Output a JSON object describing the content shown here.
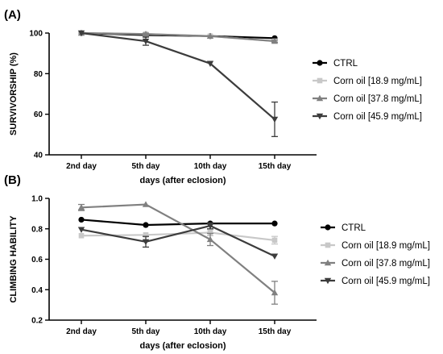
{
  "chart_data": [
    {
      "panel": "(A)",
      "type": "line",
      "title": "",
      "xlabel": "days (after eclosion)",
      "ylabel": "SURVIVORSHIP (%)",
      "categories": [
        "2nd day",
        "5th day",
        "10th day",
        "15th day"
      ],
      "ylim": [
        40,
        100
      ],
      "yticks": [
        40,
        60,
        80,
        100
      ],
      "grid": false,
      "legend": "right",
      "series": [
        {
          "name": "CTRL",
          "marker": "circle",
          "color": "#000000",
          "values": [
            100,
            99,
            98.5,
            97.5
          ],
          "error": [
            0,
            0,
            0,
            0
          ]
        },
        {
          "name": "Corn oil [18.9 mg/mL]",
          "marker": "square",
          "color": "#c8c8c8",
          "values": [
            100,
            99.5,
            98.5,
            96
          ],
          "error": [
            0,
            0,
            0,
            0.5
          ]
        },
        {
          "name": "Corn oil [37.8 mg/mL]",
          "marker": "triangle-up",
          "color": "#808080",
          "values": [
            100,
            99.5,
            98.5,
            96
          ],
          "error": [
            0,
            0.5,
            0,
            0.5
          ]
        },
        {
          "name": "Corn oil [45.9 mg/mL]",
          "marker": "triangle-down",
          "color": "#3c3c3c",
          "values": [
            100,
            96,
            85,
            57.5
          ],
          "error": [
            0,
            2,
            0,
            8.5
          ]
        }
      ]
    },
    {
      "panel": "(B)",
      "type": "line",
      "title": "",
      "xlabel": "days (after eclosion)",
      "ylabel": "CLIMBING HABILITY",
      "categories": [
        "2nd day",
        "5th day",
        "10th day",
        "15th day"
      ],
      "ylim": [
        0.2,
        1.0
      ],
      "yticks": [
        0.2,
        0.4,
        0.6,
        0.8,
        1.0
      ],
      "yticklabels": [
        "0.2",
        "0.4",
        "0.6",
        "0.8",
        "1.0"
      ],
      "grid": false,
      "legend": "right",
      "series": [
        {
          "name": "CTRL",
          "marker": "circle",
          "color": "#000000",
          "values": [
            0.86,
            0.825,
            0.835,
            0.835
          ],
          "error": [
            0,
            0,
            0,
            0
          ]
        },
        {
          "name": "Corn oil [18.9 mg/mL]",
          "marker": "square",
          "color": "#c8c8c8",
          "values": [
            0.755,
            0.76,
            0.775,
            0.725
          ],
          "error": [
            0,
            0,
            0.02,
            0.025
          ]
        },
        {
          "name": "Corn oil [37.8 mg/mL]",
          "marker": "triangle-up",
          "color": "#808080",
          "values": [
            0.94,
            0.96,
            0.73,
            0.38
          ],
          "error": [
            0.02,
            0,
            0.04,
            0.075
          ]
        },
        {
          "name": "Corn oil [45.9 mg/mL]",
          "marker": "triangle-down",
          "color": "#3c3c3c",
          "values": [
            0.795,
            0.715,
            0.82,
            0.62
          ],
          "error": [
            0,
            0.035,
            0.02,
            0
          ]
        }
      ]
    }
  ]
}
